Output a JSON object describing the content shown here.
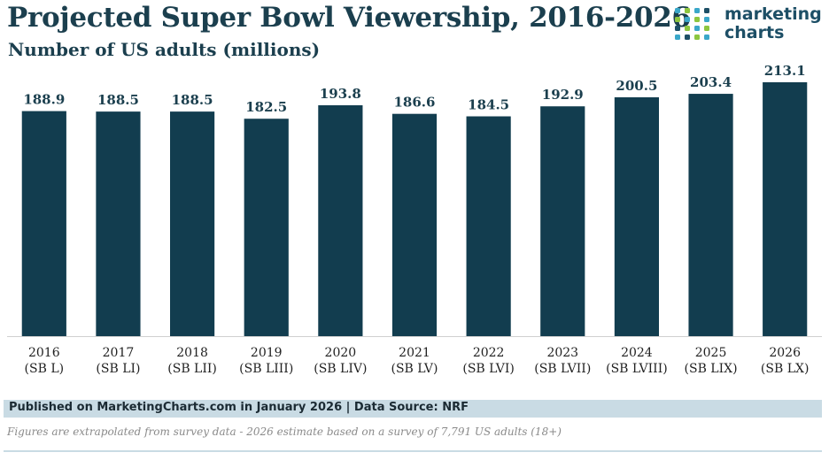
{
  "brand": {
    "line1": "marketing",
    "line2": "charts",
    "dot_colors": [
      "#3aa7c9",
      "#8dc63f",
      "#1d4f66"
    ]
  },
  "footer": {
    "published": "Published on MarketingCharts.com in January 2026 | Data Source: NRF",
    "note": "Figures are extrapolated from survey data - 2026 estimate based on a survey of 7,791 US adults (18+)"
  },
  "chart_data": {
    "type": "bar",
    "title": "Projected Super Bowl Viewership, 2016-2026",
    "subtitle": "Number of US adults (millions)",
    "xlabel": "",
    "ylabel": "",
    "ylim": [
      0,
      213.1
    ],
    "grid": false,
    "legend": "none",
    "bar_color": "#123d4f",
    "categories": [
      {
        "year": "2016",
        "game": "(SB L)"
      },
      {
        "year": "2017",
        "game": "(SB LI)"
      },
      {
        "year": "2018",
        "game": "(SB LII)"
      },
      {
        "year": "2019",
        "game": "(SB LIII)"
      },
      {
        "year": "2020",
        "game": "(SB LIV)"
      },
      {
        "year": "2021",
        "game": "(SB LV)"
      },
      {
        "year": "2022",
        "game": "(SB LVI)"
      },
      {
        "year": "2023",
        "game": "(SB LVII)"
      },
      {
        "year": "2024",
        "game": "(SB LVIII)"
      },
      {
        "year": "2025",
        "game": "(SB LIX)"
      },
      {
        "year": "2026",
        "game": "(SB LX)"
      }
    ],
    "values": [
      188.9,
      188.5,
      188.5,
      182.5,
      193.8,
      186.6,
      184.5,
      192.9,
      200.5,
      203.4,
      213.1
    ],
    "value_labels": [
      "188.9",
      "188.5",
      "188.5",
      "182.5",
      "193.8",
      "186.6",
      "184.5",
      "192.9",
      "200.5",
      "203.4",
      "213.1"
    ]
  }
}
